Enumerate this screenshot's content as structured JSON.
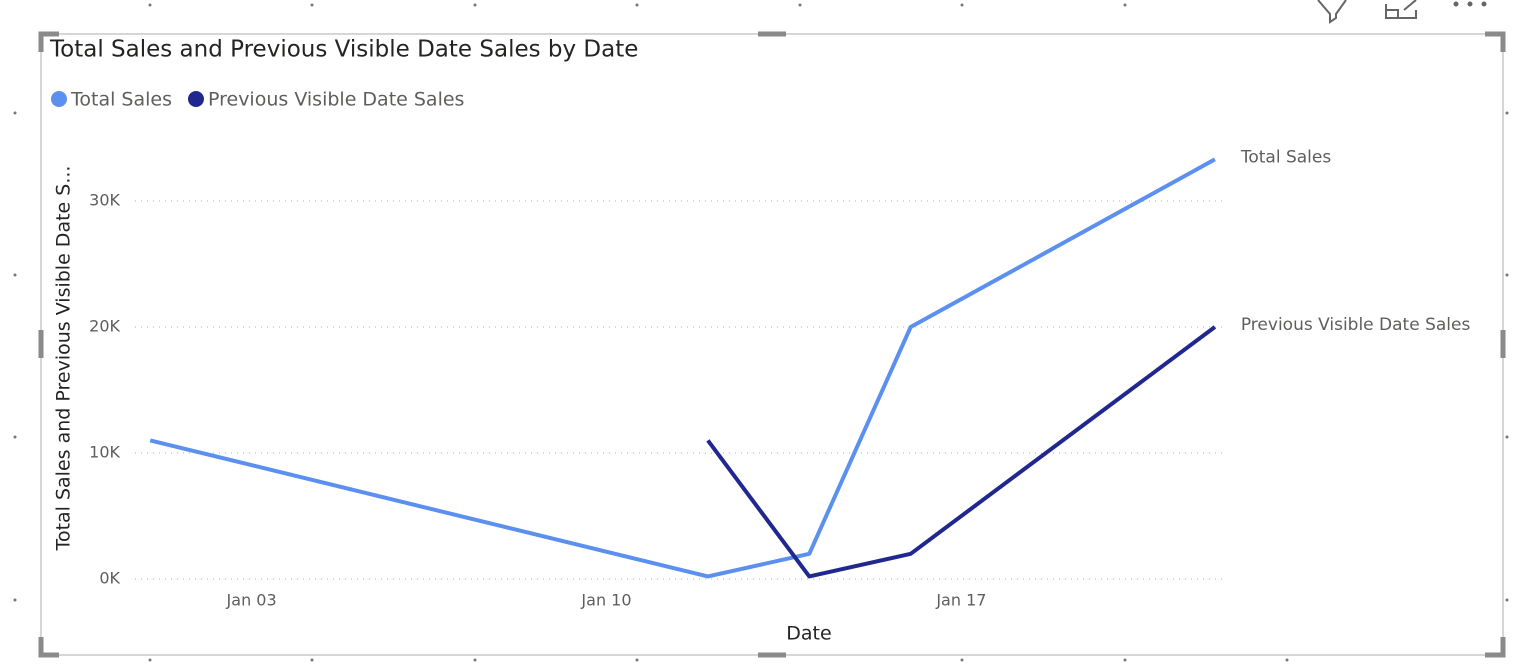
{
  "chart_data": {
    "type": "line",
    "title": "Total Sales and Previous Visible Date Sales by Date",
    "x_label": "Date",
    "y_label": "Total Sales and Previous Visible Date S...",
    "x": [
      1,
      12,
      14,
      16,
      22
    ],
    "xlim": [
      0.7,
      22.2
    ],
    "xticks": [
      {
        "value": 3,
        "label": "Jan 03"
      },
      {
        "value": 10,
        "label": "Jan 10"
      },
      {
        "value": 17,
        "label": "Jan 17"
      }
    ],
    "ylim": [
      0,
      35000
    ],
    "yticks": [
      {
        "value": 0,
        "label": "0K"
      },
      {
        "value": 10000,
        "label": "10K"
      },
      {
        "value": 20000,
        "label": "20K"
      },
      {
        "value": 30000,
        "label": "30K"
      }
    ],
    "grid": true,
    "legend": "top-left",
    "series": [
      {
        "name": "Total Sales",
        "color": "#5b8ff0",
        "values": [
          11000,
          200,
          2000,
          20000,
          33300
        ]
      },
      {
        "name": "Previous Visible Date Sales",
        "color": "#202890",
        "values": [
          null,
          11000,
          200,
          2000,
          20000
        ]
      }
    ]
  }
}
